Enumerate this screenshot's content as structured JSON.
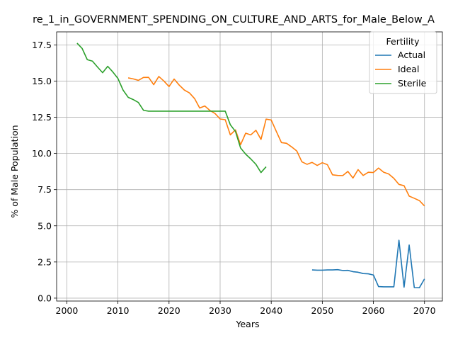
{
  "chart_data": {
    "type": "line",
    "title": "re_1_in_GOVERNMENT_SPENDING_ON_CULTURE_AND_ARTS_for_Male_Below_A",
    "xlabel": "Years",
    "ylabel": "% of Male Population",
    "xlim": [
      1998,
      2073.5
    ],
    "ylim": [
      -0.2,
      18.4
    ],
    "xticks": [
      2000,
      2010,
      2020,
      2030,
      2040,
      2050,
      2060,
      2070
    ],
    "yticks": [
      0.0,
      2.5,
      5.0,
      7.5,
      10.0,
      12.5,
      15.0,
      17.5
    ],
    "xtick_labels": [
      "2000",
      "2010",
      "2020",
      "2030",
      "2040",
      "2050",
      "2060",
      "2070"
    ],
    "ytick_labels": [
      "0.0",
      "2.5",
      "5.0",
      "7.5",
      "10.0",
      "12.5",
      "15.0",
      "17.5"
    ],
    "grid": true,
    "legend": {
      "title": "Fertility",
      "placement": "top-right"
    },
    "series": [
      {
        "name": "Actual",
        "color": "#1f77b4",
        "x": [
          2048,
          2049,
          2050,
          2051,
          2052,
          2053,
          2054,
          2055,
          2056,
          2057,
          2058,
          2059,
          2060,
          2061,
          2062,
          2063,
          2064,
          2065,
          2066,
          2067,
          2068,
          2069,
          2070
        ],
        "y": [
          1.95,
          1.93,
          1.93,
          1.95,
          1.95,
          1.97,
          1.91,
          1.92,
          1.83,
          1.79,
          1.7,
          1.68,
          1.6,
          0.8,
          0.78,
          0.78,
          0.78,
          4.0,
          0.76,
          3.67,
          0.73,
          0.72,
          1.33
        ]
      },
      {
        "name": "Ideal",
        "color": "#ff7f0e",
        "x": [
          2012,
          2013,
          2014,
          2015,
          2016,
          2017,
          2018,
          2019,
          2020,
          2021,
          2022,
          2023,
          2024,
          2025,
          2026,
          2027,
          2028,
          2029,
          2030,
          2031,
          2032,
          2033,
          2034,
          2035,
          2036,
          2037,
          2038,
          2039,
          2040,
          2041,
          2042,
          2043,
          2044,
          2045,
          2046,
          2047,
          2048,
          2049,
          2050,
          2051,
          2052,
          2053,
          2054,
          2055,
          2056,
          2057,
          2058,
          2059,
          2060,
          2061,
          2062,
          2063,
          2064,
          2065,
          2066,
          2067,
          2068,
          2069,
          2070
        ],
        "y": [
          15.22,
          15.15,
          15.05,
          15.25,
          15.26,
          14.75,
          15.32,
          15.0,
          14.62,
          15.14,
          14.72,
          14.38,
          14.18,
          13.79,
          13.14,
          13.28,
          12.97,
          12.76,
          12.38,
          12.33,
          11.28,
          11.63,
          10.6,
          11.4,
          11.28,
          11.6,
          10.97,
          12.37,
          12.31,
          11.52,
          10.75,
          10.7,
          10.45,
          10.17,
          9.42,
          9.25,
          9.38,
          9.17,
          9.36,
          9.22,
          8.52,
          8.48,
          8.47,
          8.76,
          8.3,
          8.88,
          8.48,
          8.7,
          8.68,
          8.99,
          8.7,
          8.58,
          8.28,
          7.86,
          7.77,
          7.05,
          6.9,
          6.74,
          6.37
        ]
      },
      {
        "name": "Sterile",
        "color": "#2ca02c",
        "x": [
          2002,
          2003,
          2004,
          2005,
          2006,
          2007,
          2008,
          2009,
          2010,
          2011,
          2012,
          2013,
          2014,
          2015,
          2016,
          2017,
          2018,
          2019,
          2020,
          2021,
          2022,
          2023,
          2024,
          2025,
          2026,
          2027,
          2028,
          2029,
          2030,
          2031,
          2032,
          2033,
          2034,
          2035,
          2036,
          2037,
          2038,
          2039
        ],
        "y": [
          17.62,
          17.25,
          16.48,
          16.38,
          15.97,
          15.58,
          16.02,
          15.63,
          15.18,
          14.38,
          13.88,
          13.72,
          13.52,
          12.98,
          12.92,
          12.92,
          12.92,
          12.92,
          12.92,
          12.92,
          12.92,
          12.92,
          12.92,
          12.92,
          12.92,
          12.92,
          12.92,
          12.92,
          12.92,
          12.92,
          11.98,
          11.52,
          10.38,
          9.95,
          9.62,
          9.25,
          8.68,
          9.08
        ]
      }
    ]
  }
}
